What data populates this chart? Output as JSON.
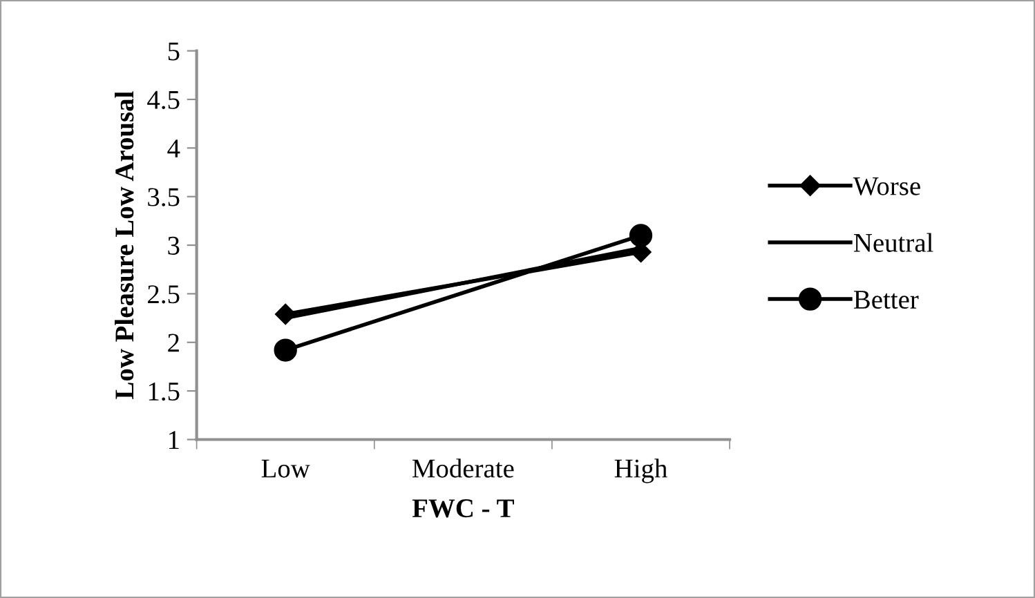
{
  "chart_data": {
    "type": "line",
    "xlabel": "FWC - T",
    "ylabel": "Low Pleasure Low Arousal",
    "categories": [
      "Low",
      "Moderate",
      "High"
    ],
    "series": [
      {
        "name": "Worse",
        "color": "#000000",
        "marker": "diamond",
        "values": [
          2.29,
          null,
          2.93
        ]
      },
      {
        "name": "Neutral",
        "color": "#000000",
        "marker": "none",
        "values": [
          2.25,
          null,
          2.97
        ]
      },
      {
        "name": "Better",
        "color": "#000000",
        "marker": "circle",
        "values": [
          1.92,
          null,
          3.1
        ]
      }
    ],
    "ylim": [
      1,
      5
    ],
    "yticks": [
      1,
      1.5,
      2,
      2.5,
      3,
      3.5,
      4,
      4.5,
      5
    ],
    "grid": false,
    "legend": "right",
    "line_style": "solid"
  }
}
